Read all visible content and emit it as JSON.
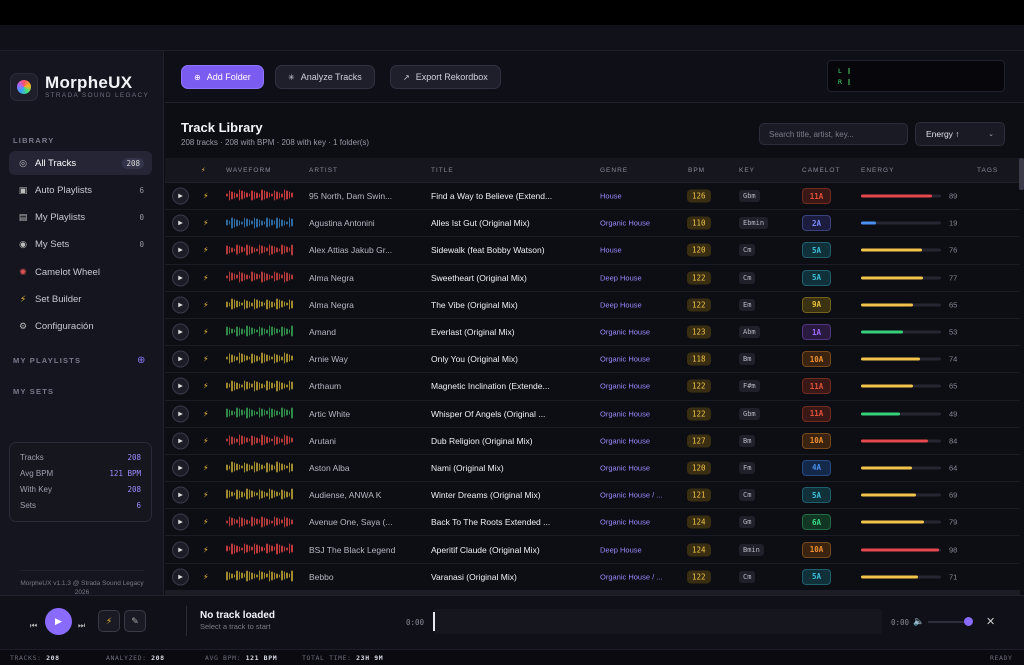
{
  "app": {
    "name": "MorpheUX",
    "subtitle": "STRADA SOUND LEGACY",
    "footer": "MorpheUX v1.1.3 @ Strada Sound Legacy 2026"
  },
  "sidebar": {
    "library_label": "LIBRARY",
    "items": [
      {
        "label": "All Tracks",
        "count": "208",
        "icon": "headphones-icon"
      },
      {
        "label": "Auto Playlists",
        "count": "6",
        "icon": "robot-icon"
      },
      {
        "label": "My Playlists",
        "count": "0",
        "icon": "folder-icon"
      },
      {
        "label": "My Sets",
        "count": "0",
        "icon": "disc-icon"
      },
      {
        "label": "Camelot Wheel",
        "count": "",
        "icon": "wheel-icon"
      },
      {
        "label": "Set Builder",
        "count": "",
        "icon": "bolt-icon"
      },
      {
        "label": "Configuración",
        "count": "",
        "icon": "gear-icon"
      }
    ],
    "playlists_label": "MY PLAYLISTS",
    "sets_label": "MY SETS",
    "stats": [
      {
        "label": "Tracks",
        "value": "208"
      },
      {
        "label": "Avg BPM",
        "value": "121 BPM"
      },
      {
        "label": "With Key",
        "value": "208"
      },
      {
        "label": "Sets",
        "value": "6"
      }
    ]
  },
  "toolbar": {
    "add_folder": "Add Folder",
    "analyze": "Analyze Tracks",
    "export": "Export Rekordbox"
  },
  "meter": {
    "l": "L",
    "r": "R"
  },
  "library": {
    "title": "Track Library",
    "subtitle": "208 tracks · 208 with BPM · 208 with key · 1 folder(s)",
    "search_placeholder": "Search title, artist, key...",
    "sort_label": "Energy ↑"
  },
  "columns": {
    "waveform": "WAVEFORM",
    "artist": "ARTIST",
    "title": "TITLE",
    "genre": "GENRE",
    "bpm": "BPM",
    "key": "KEY",
    "camelot": "CAMELOT",
    "energy": "ENERGY",
    "tags": "TAGS"
  },
  "tracks": [
    {
      "artist": "95 North, Dam Swin...",
      "title": "Find a Way to Believe (Extend...",
      "genre": "House",
      "bpm": "126",
      "key": "Gbm",
      "camelot": "11A",
      "energy": 89,
      "wave": "#c0393b"
    },
    {
      "artist": "Agustina Antonini",
      "title": "Alles Ist Gut (Original Mix)",
      "genre": "Organic House",
      "bpm": "110",
      "key": "Ebmin",
      "camelot": "2A",
      "energy": 19,
      "wave": "#2e6aa0"
    },
    {
      "artist": "Alex Attias Jakub Gr...",
      "title": "Sidewalk (feat Bobby Watson)",
      "genre": "House",
      "bpm": "120",
      "key": "Cm",
      "camelot": "5A",
      "energy": 76,
      "wave": "#b33a3a"
    },
    {
      "artist": "Alma Negra",
      "title": "Sweetheart (Original Mix)",
      "genre": "Deep House",
      "bpm": "122",
      "key": "Cm",
      "camelot": "5A",
      "energy": 77,
      "wave": "#b33a3a"
    },
    {
      "artist": "Alma Negra",
      "title": "The Vibe (Original Mix)",
      "genre": "Deep House",
      "bpm": "122",
      "key": "Em",
      "camelot": "9A",
      "energy": 65,
      "wave": "#a08a30"
    },
    {
      "artist": "Amand",
      "title": "Everlast (Original Mix)",
      "genre": "Organic House",
      "bpm": "123",
      "key": "Abm",
      "camelot": "1A",
      "energy": 53,
      "wave": "#2f8a4a"
    },
    {
      "artist": "Arnie Way",
      "title": "Only You (Original Mix)",
      "genre": "Organic House",
      "bpm": "118",
      "key": "Bm",
      "camelot": "10A",
      "energy": 74,
      "wave": "#a08a30"
    },
    {
      "artist": "Arthaum",
      "title": "Magnetic Inclination (Extende...",
      "genre": "Organic House",
      "bpm": "122",
      "key": "F#m",
      "camelot": "11A",
      "energy": 65,
      "wave": "#a08a30"
    },
    {
      "artist": "Artic White",
      "title": "Whisper Of Angels (Original ...",
      "genre": "Organic House",
      "bpm": "122",
      "key": "Gbm",
      "camelot": "11A",
      "energy": 49,
      "wave": "#2f8a4a"
    },
    {
      "artist": "Arutani",
      "title": "Dub Religion (Original Mix)",
      "genre": "Organic House",
      "bpm": "127",
      "key": "Bm",
      "camelot": "10A",
      "energy": 84,
      "wave": "#b33a3a"
    },
    {
      "artist": "Aston Alba",
      "title": "Nami (Original Mix)",
      "genre": "Organic House",
      "bpm": "120",
      "key": "Fm",
      "camelot": "4A",
      "energy": 64,
      "wave": "#a08a30"
    },
    {
      "artist": "Audiense, ANWA K",
      "title": "Winter Dreams (Original Mix)",
      "genre": "Organic House / ...",
      "bpm": "121",
      "key": "Cm",
      "camelot": "5A",
      "energy": 69,
      "wave": "#a08a30"
    },
    {
      "artist": "Avenue One, Saya (...",
      "title": "Back To The Roots Extended ...",
      "genre": "Organic House",
      "bpm": "124",
      "key": "Gm",
      "camelot": "6A",
      "energy": 79,
      "wave": "#b33a3a"
    },
    {
      "artist": "BSJ The Black Legend",
      "title": "Aperitif Claude (Original Mix)",
      "genre": "Deep House",
      "bpm": "124",
      "key": "Bmin",
      "camelot": "10A",
      "energy": 98,
      "wave": "#c0393b"
    },
    {
      "artist": "Bebbo",
      "title": "Varanasi (Original Mix)",
      "genre": "Organic House / ...",
      "bpm": "122",
      "key": "Cm",
      "camelot": "5A",
      "energy": 71,
      "wave": "#a08a30"
    }
  ],
  "player": {
    "title": "No track loaded",
    "subtitle": "Select a track to start",
    "time_start": "0:00",
    "time_end": "0:00"
  },
  "status": {
    "tracks_label": "TRACKS:",
    "tracks": "208",
    "analyzed_label": "ANALYZED:",
    "analyzed": "208",
    "avg_label": "AVG BPM:",
    "avg": "121 BPM",
    "total_label": "TOTAL TIME:",
    "total": "23H 9M",
    "state": "READY"
  }
}
